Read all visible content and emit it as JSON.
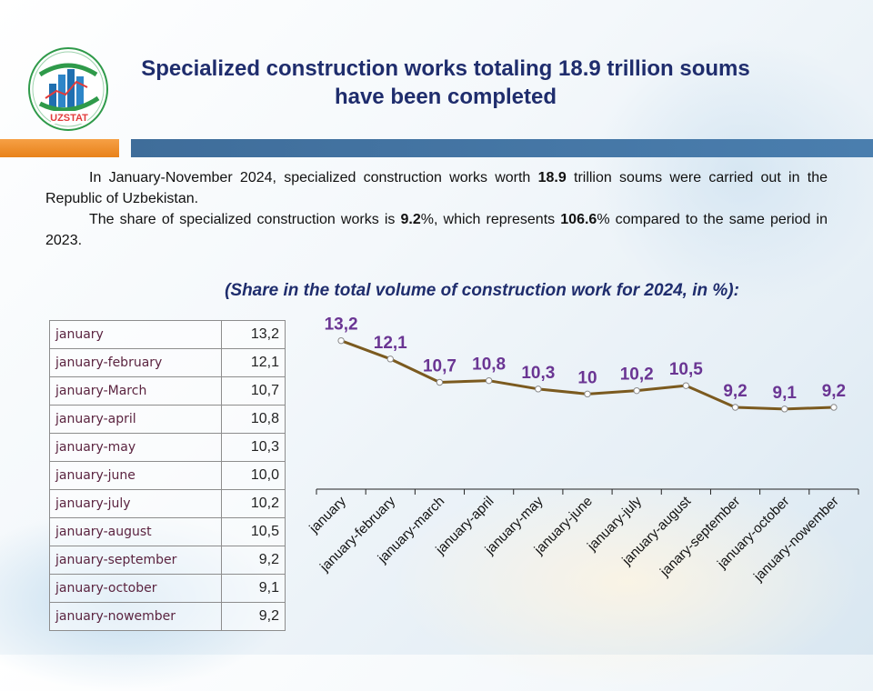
{
  "header": {
    "logo_text": "UZSTAT",
    "title": "Specialized construction works totaling 18.9 trillion soums have been completed"
  },
  "intro": {
    "p1_a": "In January-November 2024, specialized construction works worth ",
    "p1_b": "18.9",
    "p1_c": " trillion soums were carried out in the Republic of Uzbekistan.",
    "p2_a": "The share of specialized construction works is ",
    "p2_b": "9.2",
    "p2_c": "%, which represents ",
    "p2_d": "106.6",
    "p2_e": "% compared to the same period in 2023."
  },
  "subtitle": "(Share in the total volume of construction work for 2024, in %):",
  "table": {
    "rows": [
      {
        "label": "january",
        "value": "13,2"
      },
      {
        "label": "january-february",
        "value": "12,1"
      },
      {
        "label": "january-March",
        "value": "10,7"
      },
      {
        "label": "january-april",
        "value": "10,8"
      },
      {
        "label": "january-may",
        "value": "10,3"
      },
      {
        "label": "january-june",
        "value": "10,0"
      },
      {
        "label": "january-july",
        "value": "10,2"
      },
      {
        "label": "january-august",
        "value": "10,5"
      },
      {
        "label": "january-september",
        "value": "9,2"
      },
      {
        "label": "january-october",
        "value": "9,1"
      },
      {
        "label": "january-nowember",
        "value": "9,2"
      }
    ]
  },
  "chart_data": {
    "type": "line",
    "title": "(Share in the total volume of construction work for 2024, in %):",
    "categories": [
      "january",
      "january-february",
      "january-march",
      "january-april",
      "january-may",
      "january-june",
      "january-july",
      "january-august",
      "janary-september",
      "january-october",
      "january-nowember"
    ],
    "series": [
      {
        "name": "Share, %",
        "values": [
          13.2,
          12.1,
          10.7,
          10.8,
          10.3,
          10.0,
          10.2,
          10.5,
          9.2,
          9.1,
          9.2
        ],
        "labels": [
          "13,2",
          "12,1",
          "10,7",
          "10,8",
          "10,3",
          "10",
          "10,2",
          "10,5",
          "9,2",
          "9,1",
          "9,2"
        ]
      }
    ],
    "xlabel": "",
    "ylabel": "",
    "ylim": [
      0,
      14
    ],
    "colors": {
      "line": "#7b5a1f",
      "label": "#6a3593",
      "axis": "#222222"
    }
  }
}
